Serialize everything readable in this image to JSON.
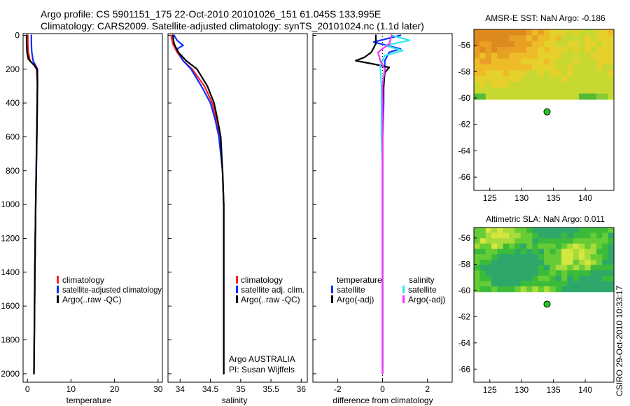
{
  "header": {
    "line1": "Argo profile: CS 5901151_175 22-Oct-2010 20101026_151 61.045S 133.995E",
    "line2": "Climatology: CARS2009. Satellite-adjusted climatology: synTS_20101024.nc (1.1d later)"
  },
  "credit": "CSIRO 29-Oct-2010 10:33:17",
  "colors": {
    "climatology": "#ff2020",
    "satellite": "#1030ff",
    "argo": "#000000",
    "sat_salinity": "#30e8f0",
    "argo_salinity": "#ff30ff",
    "float_marker": "#22cc22"
  },
  "chart_data": [
    {
      "type": "line",
      "id": "temperature",
      "xlabel": "temperature",
      "ylabel": "",
      "xlim": [
        -1,
        31
      ],
      "ylim": [
        2050,
        -10
      ],
      "xticks": [
        "0",
        "10",
        "20",
        "30"
      ],
      "xtick_values": [
        0,
        10,
        20,
        30
      ],
      "yticks": [
        "0",
        "200",
        "400",
        "600",
        "800",
        "1000",
        "1200",
        "1400",
        "1600",
        "1800",
        "2000"
      ],
      "ytick_values": [
        0,
        200,
        400,
        600,
        800,
        1000,
        1200,
        1400,
        1600,
        1800,
        2000
      ],
      "legend": [
        "climatology",
        "satellite-adjusted climatology",
        "Argo(..raw -QC)"
      ],
      "legend_colors": [
        "#ff2020",
        "#1030ff",
        "#000000"
      ],
      "series": [
        {
          "name": "climatology",
          "color": "#ff2020",
          "depth": [
            0,
            50,
            100,
            150,
            180,
            200,
            300,
            500,
            800,
            1000,
            1400,
            1700,
            2000
          ],
          "values": [
            0.1,
            0.1,
            0.2,
            0.6,
            1.6,
            2.1,
            2.3,
            2.2,
            2.0,
            1.9,
            1.7,
            1.6,
            1.5
          ]
        },
        {
          "name": "satellite-adjusted climatology",
          "color": "#1030ff",
          "depth": [
            0,
            50,
            100,
            150,
            180,
            200,
            300,
            500,
            800,
            1000,
            1400,
            1700,
            2000
          ],
          "values": [
            0.9,
            0.9,
            1.0,
            1.3,
            1.9,
            2.3,
            2.3,
            2.2,
            2.0,
            1.9,
            1.7,
            1.6,
            1.5
          ]
        },
        {
          "name": "Argo(..raw -QC)",
          "color": "#000000",
          "depth": [
            0,
            50,
            100,
            140,
            160,
            180,
            200,
            250,
            300,
            500,
            700,
            1000,
            1400,
            1700,
            2000
          ],
          "values": [
            -0.2,
            -0.2,
            -0.1,
            0.2,
            0.9,
            1.7,
            2.2,
            2.3,
            2.3,
            2.2,
            2.1,
            1.9,
            1.7,
            1.6,
            1.5
          ]
        }
      ]
    },
    {
      "type": "line",
      "id": "salinity",
      "xlabel": "salinity",
      "xlim": [
        33.8,
        36.1
      ],
      "ylim": [
        2050,
        -10
      ],
      "xticks": [
        "34",
        "34.5",
        "35",
        "35.5",
        "36"
      ],
      "xtick_values": [
        34,
        34.5,
        35,
        35.5,
        36
      ],
      "legend": [
        "climatology",
        "satellite adj. clim.",
        "Argo(..raw -QC)"
      ],
      "legend_colors": [
        "#ff2020",
        "#1030ff",
        "#000000"
      ],
      "annotations": [
        "Argo AUSTRALIA",
        "PI: Susan Wijffels"
      ],
      "series": [
        {
          "name": "climatology",
          "color": "#ff2020",
          "depth": [
            0,
            50,
            100,
            150,
            200,
            300,
            400,
            500,
            600,
            800,
            1000,
            1400,
            2000
          ],
          "values": [
            33.85,
            33.88,
            33.95,
            34.05,
            34.2,
            34.4,
            34.53,
            34.6,
            34.65,
            34.7,
            34.72,
            34.72,
            34.72
          ]
        },
        {
          "name": "satellite adj. clim.",
          "color": "#1030ff",
          "depth": [
            0,
            30,
            60,
            80,
            100,
            150,
            200,
            300,
            400,
            500,
            600,
            800,
            1000,
            1400,
            2000
          ],
          "values": [
            33.9,
            33.95,
            34.05,
            33.95,
            33.97,
            34.05,
            34.18,
            34.35,
            34.5,
            34.58,
            34.64,
            34.7,
            34.72,
            34.72,
            34.72
          ]
        },
        {
          "name": "Argo(..raw -QC)",
          "color": "#000000",
          "depth": [
            0,
            50,
            100,
            150,
            200,
            300,
            400,
            500,
            600,
            800,
            1000,
            1400,
            2000
          ],
          "values": [
            33.88,
            33.9,
            33.97,
            34.1,
            34.28,
            34.45,
            34.56,
            34.62,
            34.67,
            34.7,
            34.72,
            34.72,
            34.72
          ]
        }
      ]
    },
    {
      "type": "line",
      "id": "difference",
      "xlabel": "difference from climatology",
      "xlim": [
        -3.1,
        3.1
      ],
      "ylim": [
        2050,
        -10
      ],
      "xticks": [
        "-2",
        "0",
        "2"
      ],
      "xtick_values": [
        -2,
        0,
        2
      ],
      "legend_left_title": "temperature",
      "legend_right_title": "salinity",
      "legend_left": [
        "satellite",
        "Argo(-adj)"
      ],
      "legend_left_colors": [
        "#1030ff",
        "#000000"
      ],
      "legend_right": [
        "satellite",
        "Argo(-adj)"
      ],
      "legend_right_colors": [
        "#30e8f0",
        "#ff30ff"
      ],
      "series": [
        {
          "name": "temperature satellite",
          "color": "#1030ff",
          "depth": [
            0,
            40,
            80,
            100,
            150,
            200,
            300,
            400,
            600,
            1000,
            2000
          ],
          "values": [
            0.8,
            -0.4,
            0.8,
            0.3,
            0.1,
            0.1,
            0.05,
            0.05,
            0.0,
            0.0,
            0.0
          ]
        },
        {
          "name": "temperature Argo(-adj)",
          "color": "#000000",
          "depth": [
            0,
            50,
            100,
            130,
            150,
            170,
            190,
            220,
            300,
            400,
            600,
            1000,
            2000
          ],
          "values": [
            -0.3,
            -0.3,
            -0.5,
            -0.8,
            -1.2,
            -0.4,
            0.3,
            0.1,
            0.05,
            0.0,
            0.0,
            0.0,
            0.0
          ]
        },
        {
          "name": "salinity satellite",
          "color": "#30e8f0",
          "depth": [
            0,
            30,
            60,
            90,
            120,
            180,
            300,
            400,
            600,
            800,
            1000,
            2000
          ],
          "values": [
            0.4,
            1.2,
            0.1,
            0.9,
            0.1,
            -0.1,
            -0.05,
            -0.05,
            -0.05,
            0.0,
            0.0,
            0.0
          ]
        },
        {
          "name": "salinity Argo(-adj)",
          "color": "#ff30ff",
          "depth": [
            0,
            50,
            100,
            150,
            200,
            300,
            400,
            600,
            1000,
            2000
          ],
          "values": [
            0.4,
            0.3,
            -0.2,
            -0.1,
            0.1,
            0.0,
            0.0,
            0.0,
            0.0,
            0.0
          ]
        }
      ]
    },
    {
      "type": "heatmap",
      "id": "amsre_sst",
      "title": "AMSR-E SST: NaN Argo: -0.186",
      "xlim": [
        122.5,
        144.5
      ],
      "ylim": [
        -67,
        -54.8
      ],
      "xticks": [
        "125",
        "130",
        "135",
        "140"
      ],
      "xtick_values": [
        125,
        130,
        135,
        140
      ],
      "yticks": [
        "-56",
        "-58",
        "-60",
        "-62",
        "-64",
        "-66"
      ],
      "ytick_values": [
        -56,
        -58,
        -60,
        -62,
        -64,
        -66
      ],
      "data_lat_range": [
        -60.1,
        -54.8
      ],
      "float_position": {
        "lon": 133.995,
        "lat": -61.045
      }
    },
    {
      "type": "heatmap",
      "id": "altimetric_sla",
      "title": "Altimetric SLA: NaN Argo: 0.011",
      "xlim": [
        122.5,
        144.5
      ],
      "ylim": [
        -67,
        -55.2
      ],
      "xticks": [
        "125",
        "130",
        "135",
        "140"
      ],
      "xtick_values": [
        125,
        130,
        135,
        140
      ],
      "yticks": [
        "-56",
        "-58",
        "-60",
        "-62",
        "-64",
        "-66"
      ],
      "ytick_values": [
        -56,
        -58,
        -60,
        -62,
        -64,
        -66
      ],
      "data_lat_range": [
        -60.1,
        -55.2
      ],
      "float_position": {
        "lon": 133.995,
        "lat": -61.045
      }
    }
  ]
}
